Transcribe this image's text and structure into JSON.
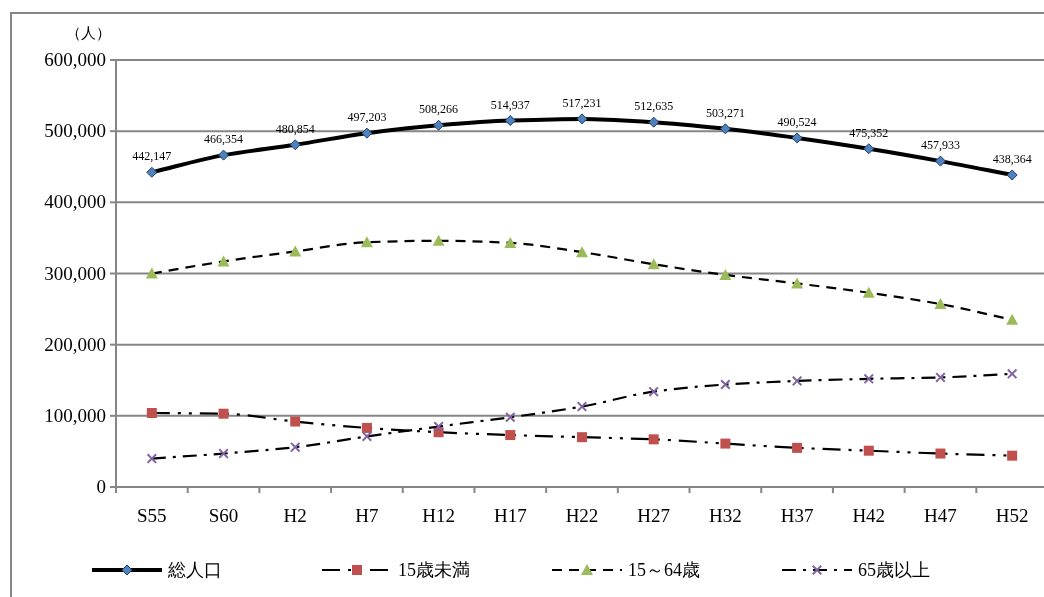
{
  "chart_data": {
    "type": "line",
    "ylabel": "（人）",
    "categories": [
      "S55",
      "S60",
      "H2",
      "H7",
      "H12",
      "H17",
      "H22",
      "H27",
      "H32",
      "H37",
      "H42",
      "H47",
      "H52"
    ],
    "ylim": [
      0,
      600000
    ],
    "yticks": [
      {
        "value": 0,
        "label": "0"
      },
      {
        "value": 100000,
        "label": "100,000"
      },
      {
        "value": 200000,
        "label": "200,000"
      },
      {
        "value": 300000,
        "label": "300,000"
      },
      {
        "value": 400000,
        "label": "400,000"
      },
      {
        "value": 500000,
        "label": "500,000"
      },
      {
        "value": 600000,
        "label": "600,000"
      }
    ],
    "grid": "y",
    "legend": "bottom",
    "series": [
      {
        "name": "総人口",
        "color": "#4f81bd",
        "marker": "diamond",
        "line_style": "solid",
        "values": [
          442147,
          466354,
          480854,
          497203,
          508266,
          514937,
          517231,
          512635,
          503271,
          490524,
          475352,
          457933,
          438364
        ],
        "value_labels": [
          "442,147",
          "466,354",
          "480,854",
          "497,203",
          "508,266",
          "514,937",
          "517,231",
          "512,635",
          "503,271",
          "490,524",
          "475,352",
          "457,933",
          "438,364"
        ]
      },
      {
        "name": "15歳未満",
        "color": "#c0504d",
        "marker": "square",
        "line_style": "dashdotdot",
        "values": [
          104000,
          103000,
          92000,
          83000,
          77000,
          73000,
          70000,
          67000,
          61000,
          55000,
          51000,
          47000,
          44000
        ]
      },
      {
        "name": "15～64歳",
        "color": "#9bbb59",
        "marker": "triangle",
        "line_style": "dashed",
        "values": [
          300000,
          317000,
          331000,
          344000,
          346000,
          343000,
          330000,
          313000,
          298000,
          286000,
          273000,
          257000,
          235000
        ]
      },
      {
        "name": "65歳以上",
        "color": "#8064a2",
        "marker": "cross",
        "line_style": "dashdot",
        "values": [
          40000,
          47000,
          56000,
          71000,
          85000,
          98000,
          113000,
          134000,
          144000,
          149000,
          152000,
          154000,
          159000
        ]
      }
    ]
  }
}
